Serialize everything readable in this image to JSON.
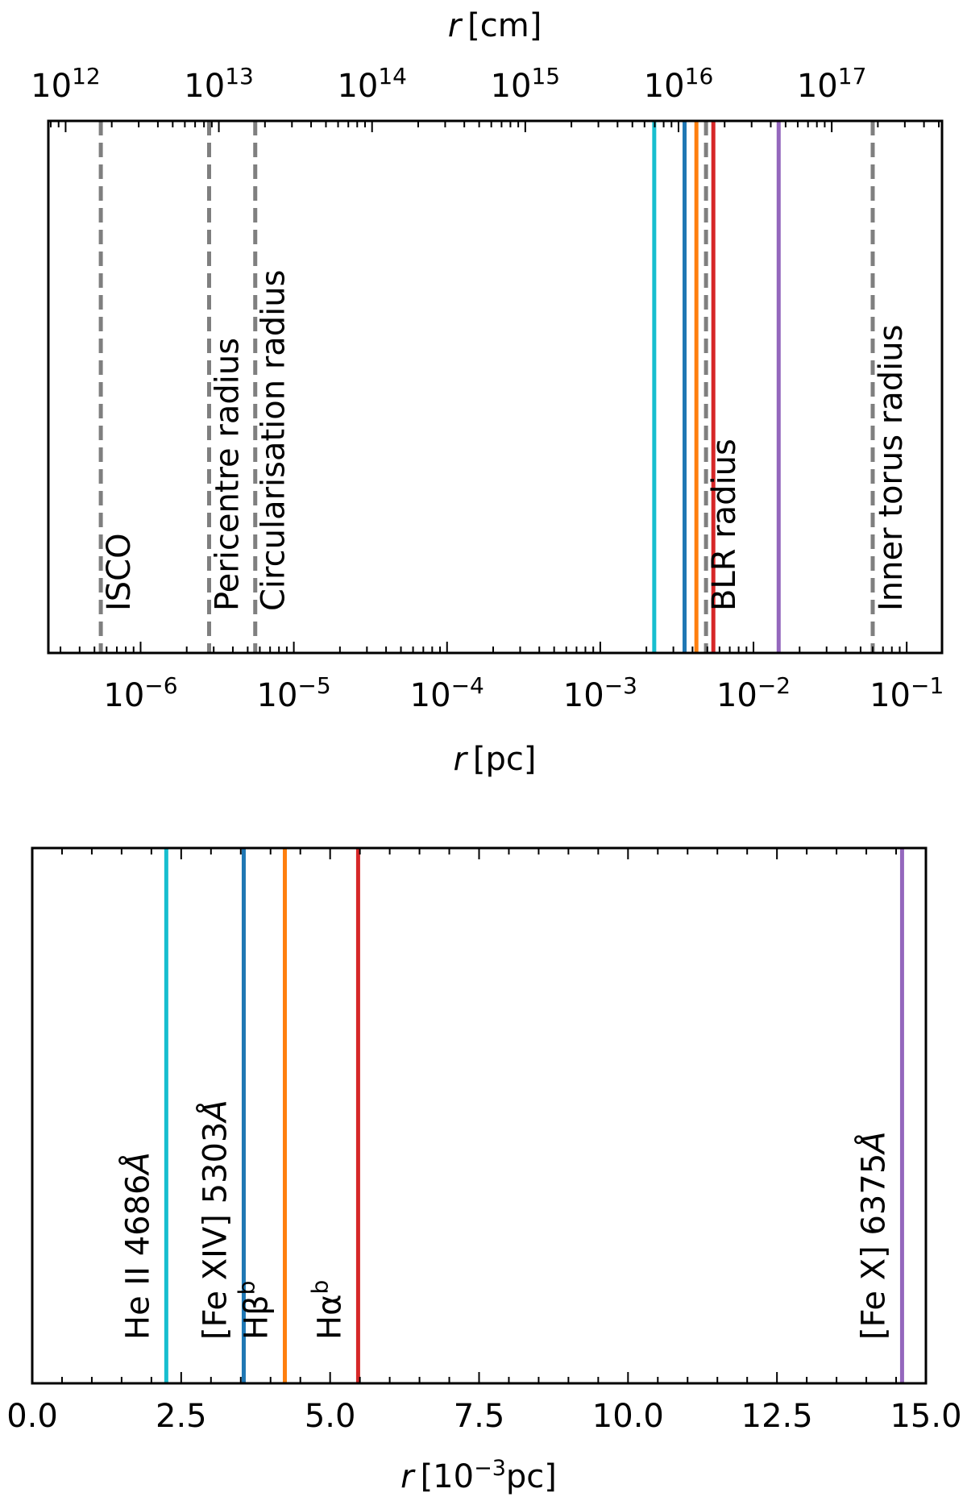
{
  "colors": {
    "isco": "#7f7f7f",
    "he2": "#17becf",
    "fe14": "#1f77b4",
    "hbeta": "#ff7f0e",
    "halpha": "#d62728",
    "fe10": "#9467bd"
  },
  "chart_data": [
    {
      "type": "vline-log",
      "xlabel_var": "r",
      "xlabel_unit": "[pc]",
      "top_xlabel_var": "r",
      "top_xlabel_unit": "[cm]",
      "xlim_pc": [
        2.5e-07,
        0.17
      ],
      "bottom_ticks": [
        {
          "value": 1e-06,
          "base": "10",
          "exp": "−6"
        },
        {
          "value": 1e-05,
          "base": "10",
          "exp": "−5"
        },
        {
          "value": 0.0001,
          "base": "10",
          "exp": "−4"
        },
        {
          "value": 0.001,
          "base": "10",
          "exp": "−3"
        },
        {
          "value": 0.01,
          "base": "10",
          "exp": "−2"
        },
        {
          "value": 0.1,
          "base": "10",
          "exp": "−1"
        }
      ],
      "top_ticks": [
        {
          "value_cm": 1000000000000.0,
          "base": "10",
          "exp": "12"
        },
        {
          "value_cm": 10000000000000.0,
          "base": "10",
          "exp": "13"
        },
        {
          "value_cm": 100000000000000.0,
          "base": "10",
          "exp": "14"
        },
        {
          "value_cm": 1000000000000000.0,
          "base": "10",
          "exp": "15"
        },
        {
          "value_cm": 1e+16,
          "base": "10",
          "exp": "16"
        },
        {
          "value_cm": 1e+17,
          "base": "10",
          "exp": "17"
        }
      ],
      "dashed_lines": [
        {
          "name": "ISCO",
          "label": "ISCO",
          "r_pc": 5.5e-07
        },
        {
          "name": "pericentre",
          "label": "Pericentre radius",
          "r_pc": 2.8e-06
        },
        {
          "name": "circularisation",
          "label": "Circularisation radius",
          "r_pc": 5.6e-06
        },
        {
          "name": "blr",
          "label": "BLR radius",
          "r_pc": 0.0049
        },
        {
          "name": "torus",
          "label": "Inner torus radius",
          "r_pc": 0.06
        }
      ],
      "solid_lines": [
        {
          "name": "He II 4686",
          "r_pc": 0.00225,
          "color": "#17becf"
        },
        {
          "name": "[Fe XIV] 5303",
          "r_pc": 0.00355,
          "color": "#1f77b4"
        },
        {
          "name": "Hbeta",
          "r_pc": 0.00424,
          "color": "#ff7f0e"
        },
        {
          "name": "Halpha",
          "r_pc": 0.00547,
          "color": "#d62728"
        },
        {
          "name": "[Fe X] 6375",
          "r_pc": 0.0146,
          "color": "#9467bd"
        }
      ]
    },
    {
      "type": "vline-linear",
      "xlabel_var": "r",
      "xlabel_pre": "[10",
      "xlabel_exp": "−3",
      "xlabel_post": "pc]",
      "xlim": [
        0,
        15
      ],
      "ticks": [
        "0.0",
        "2.5",
        "5.0",
        "7.5",
        "10.0",
        "12.5",
        "15.0"
      ],
      "tick_values": [
        0,
        2.5,
        5,
        7.5,
        10,
        12.5,
        15
      ],
      "lines": [
        {
          "name": "he2",
          "value": 2.25,
          "color": "#17becf",
          "label_main": "He II 4686",
          "label_sup": "",
          "label_tail": "Å"
        },
        {
          "name": "fe14",
          "value": 3.55,
          "color": "#1f77b4",
          "label_main": "[Fe XIV] 5303",
          "label_sup": "",
          "label_tail": "Å"
        },
        {
          "name": "hbeta",
          "value": 4.24,
          "color": "#ff7f0e",
          "label_main": "Hβ",
          "label_sup": "b",
          "label_tail": ""
        },
        {
          "name": "halpha",
          "value": 5.47,
          "color": "#d62728",
          "label_main": "Hα",
          "label_sup": "b",
          "label_tail": ""
        },
        {
          "name": "fe10",
          "value": 14.6,
          "color": "#9467bd",
          "label_main": "[Fe X] 6375",
          "label_sup": "",
          "label_tail": "Å"
        }
      ]
    }
  ]
}
